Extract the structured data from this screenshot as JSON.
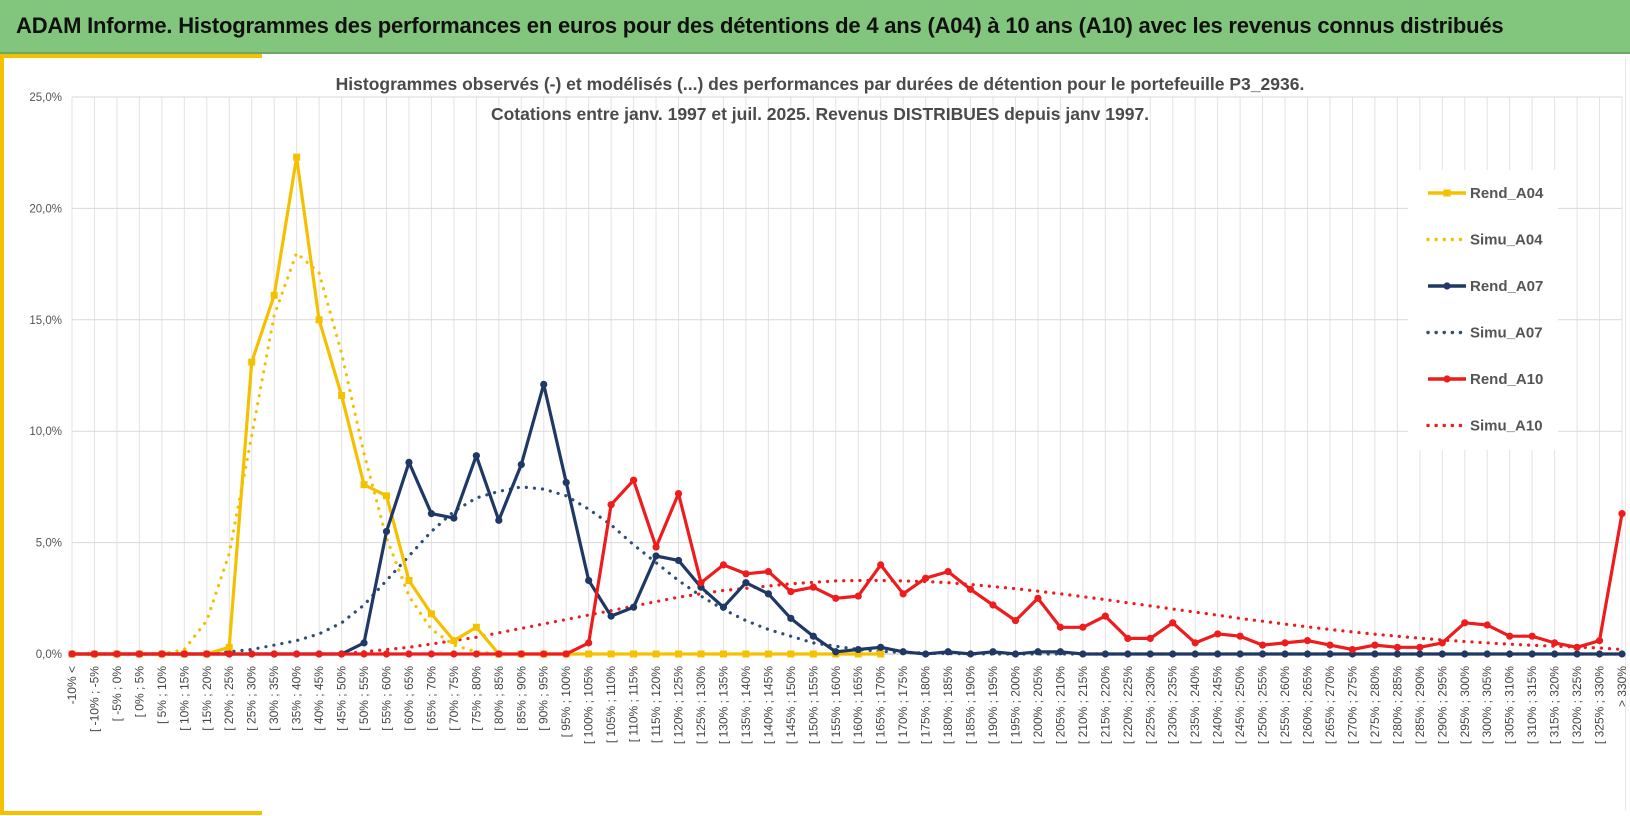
{
  "page": {
    "banner_title": "ADAM Informe. Histogrammes des performances en euros pour des détentions de 4 ans (A04) à 10 ans (A10) avec les revenus connus distribués"
  },
  "colors": {
    "banner_bg": "#82c57c",
    "accent": "#f5c000",
    "A04": "#f5c000",
    "A07": "#1f3864",
    "A07_simu": "#2e4e78",
    "A10": "#ee1c1c"
  },
  "chart_data": {
    "type": "line",
    "title_lines": [
      "Histogrammes observés (-) et modélisés (...) des performances par durées de détention pour le portefeuille P3_2936.",
      "Cotations entre janv. 1997 et juil. 2025. Revenus DISTRIBUES depuis janv 1997."
    ],
    "ylim": [
      0,
      25
    ],
    "yticks": [
      0,
      5,
      10,
      15,
      20,
      25
    ],
    "ytick_labels": [
      "0,0%",
      "5,0%",
      "10,0%",
      "15,0%",
      "20,0%",
      "25,0%"
    ],
    "grid": true,
    "legend_position": "right",
    "categories": [
      "-10% <",
      "[ -10% ; -5%",
      "[ -5% ; 0%",
      "[ 0% ; 5%",
      "[ 5% ; 10%",
      "[ 10% ; 15%",
      "[ 15% ; 20%",
      "[ 20% ; 25%",
      "[ 25% ; 30%",
      "[ 30% ; 35%",
      "[ 35% ; 40%",
      "[ 40% ; 45%",
      "[ 45% ; 50%",
      "[ 50% ; 55%",
      "[ 55% ; 60%",
      "[ 60% ; 65%",
      "[ 65% ; 70%",
      "[ 70% ; 75%",
      "[ 75% ; 80%",
      "[ 80% ; 85%",
      "[ 85% ; 90%",
      "[ 90% ; 95%",
      "[ 95% ; 100%",
      "[ 100% ; 105%",
      "[ 105% ; 110%",
      "[ 110% ; 115%",
      "[ 115% ; 120%",
      "[ 120% ; 125%",
      "[ 125% ; 130%",
      "[ 130% ; 135%",
      "[ 135% ; 140%",
      "[ 140% ; 145%",
      "[ 145% ; 150%",
      "[ 150% ; 155%",
      "[ 155% ; 160%",
      "[ 160% ; 165%",
      "[ 165% ; 170%",
      "[ 170% ; 175%",
      "[ 175% ; 180%",
      "[ 180% ; 185%",
      "[ 185% ; 190%",
      "[ 190% ; 195%",
      "[ 195% ; 200%",
      "[ 200% ; 205%",
      "[ 205% ; 210%",
      "[ 210% ; 215%",
      "[ 215% ; 220%",
      "[ 220% ; 225%",
      "[ 225% ; 230%",
      "[ 230% ; 235%",
      "[ 235% ; 240%",
      "[ 240% ; 245%",
      "[ 245% ; 250%",
      "[ 250% ; 255%",
      "[ 255% ; 260%",
      "[ 260% ; 265%",
      "[ 265% ; 270%",
      "[ 270% ; 275%",
      "[ 275% ; 280%",
      "[ 280% ; 285%",
      "[ 285% ; 290%",
      "[ 290% ; 295%",
      "[ 295% ; 300%",
      "[ 300% ; 305%",
      "[ 305% ; 310%",
      "[ 310% ; 315%",
      "[ 315% ; 320%",
      "[ 320% ; 325%",
      "[ 325% ; 330%",
      "> 330%"
    ],
    "series": [
      {
        "name": "Rend_A04",
        "style": "solid",
        "marker": "square",
        "color": "#f5c000",
        "values": [
          0,
          0,
          0,
          0,
          0,
          0,
          0,
          0.3,
          13.1,
          16.1,
          22.3,
          15.0,
          11.6,
          7.6,
          7.1,
          3.3,
          1.8,
          0.6,
          1.2,
          0,
          0,
          0,
          0,
          0,
          0,
          0,
          0,
          0,
          0,
          0,
          0,
          0,
          0,
          0,
          0,
          0,
          0,
          null,
          null,
          null,
          null,
          null,
          null,
          null,
          null,
          null,
          null,
          null,
          null,
          null,
          null,
          null,
          null,
          null,
          null,
          null,
          null,
          null,
          null,
          null,
          null,
          null,
          null,
          null,
          null,
          null,
          null,
          null,
          null,
          null
        ]
      },
      {
        "name": "Simu_A04",
        "style": "dotted",
        "color": "#f5c000",
        "values": [
          0,
          0,
          0,
          0,
          0,
          0.2,
          1.5,
          4.5,
          9.8,
          15.2,
          18.0,
          17.1,
          13.5,
          9.0,
          5.2,
          2.6,
          1.1,
          0.4,
          0.1,
          0,
          null,
          null,
          null,
          null,
          null,
          null,
          null,
          null,
          null,
          null,
          null,
          null,
          null,
          null,
          null,
          null,
          null,
          null,
          null,
          null,
          null,
          null,
          null,
          null,
          null,
          null,
          null,
          null,
          null,
          null,
          null,
          null,
          null,
          null,
          null,
          null,
          null,
          null,
          null,
          null,
          null,
          null,
          null,
          null,
          null,
          null,
          null,
          null,
          null,
          null
        ]
      },
      {
        "name": "Rend_A07",
        "style": "solid",
        "marker": "circle",
        "color": "#1f3864",
        "values": [
          0,
          0,
          0,
          0,
          0,
          0,
          0,
          0,
          0,
          0,
          0,
          0,
          0,
          0.5,
          5.5,
          8.6,
          6.3,
          6.1,
          8.9,
          6.0,
          8.5,
          12.1,
          7.7,
          3.3,
          1.7,
          2.1,
          4.4,
          4.2,
          3.0,
          2.1,
          3.2,
          2.7,
          1.6,
          0.8,
          0.1,
          0.2,
          0.3,
          0.1,
          0,
          0.1,
          0,
          0.1,
          0,
          0.1,
          0.1,
          0,
          0,
          0,
          0,
          0,
          0,
          0,
          0,
          0,
          0,
          0,
          0,
          0,
          0,
          0,
          0,
          0,
          0,
          0,
          0,
          0,
          0,
          0,
          0,
          0
        ]
      },
      {
        "name": "Simu_A07",
        "style": "dotted",
        "color": "#2e4e78",
        "values": [
          0,
          0,
          0,
          0,
          0,
          0,
          0,
          0.1,
          0.2,
          0.4,
          0.6,
          0.9,
          1.4,
          2.2,
          3.3,
          4.4,
          5.5,
          6.4,
          7.0,
          7.3,
          7.5,
          7.4,
          7.1,
          6.5,
          5.8,
          4.9,
          4.1,
          3.3,
          2.6,
          2.0,
          1.5,
          1.1,
          0.8,
          0.5,
          0.35,
          0.2,
          0.12,
          0.07,
          0.04,
          0.02,
          0.01,
          0,
          0,
          0,
          0,
          0,
          0,
          0,
          0,
          0,
          0,
          0,
          0,
          0,
          0,
          0,
          0,
          0,
          0,
          0,
          0,
          0,
          0,
          0,
          0,
          0,
          0,
          0,
          0,
          0
        ]
      },
      {
        "name": "Rend_A10",
        "style": "solid",
        "marker": "circle",
        "color": "#ee1c1c",
        "values": [
          0,
          0,
          0,
          0,
          0,
          0,
          0,
          0,
          0,
          0,
          0,
          0,
          0,
          0,
          0,
          0,
          0,
          0,
          0,
          0,
          0,
          0,
          0,
          0.5,
          6.7,
          7.8,
          4.8,
          7.2,
          3.2,
          4.0,
          3.6,
          3.7,
          2.8,
          3.0,
          2.5,
          2.6,
          4.0,
          2.7,
          3.4,
          3.7,
          2.9,
          2.2,
          1.5,
          2.5,
          1.2,
          1.2,
          1.7,
          0.7,
          0.7,
          1.4,
          0.5,
          0.9,
          0.8,
          0.4,
          0.5,
          0.6,
          0.4,
          0.2,
          0.4,
          0.3,
          0.3,
          0.5,
          1.4,
          1.3,
          0.8,
          0.8,
          0.5,
          0.3,
          0.6,
          6.3
        ]
      },
      {
        "name": "Simu_A10",
        "style": "dotted",
        "color": "#ee1c1c",
        "values": [
          0,
          0,
          0,
          0,
          0,
          0,
          0,
          0,
          0,
          0,
          0,
          0,
          0,
          0.1,
          0.2,
          0.3,
          0.45,
          0.6,
          0.75,
          0.95,
          1.15,
          1.35,
          1.55,
          1.75,
          1.95,
          2.15,
          2.35,
          2.55,
          2.7,
          2.85,
          2.95,
          3.05,
          3.15,
          3.22,
          3.28,
          3.3,
          3.3,
          3.28,
          3.25,
          3.2,
          3.12,
          3.03,
          2.93,
          2.82,
          2.7,
          2.57,
          2.44,
          2.3,
          2.16,
          2.02,
          1.88,
          1.74,
          1.6,
          1.47,
          1.34,
          1.22,
          1.1,
          0.99,
          0.89,
          0.8,
          0.71,
          0.63,
          0.56,
          0.5,
          0.44,
          0.39,
          0.35,
          0.31,
          0.27,
          0.2
        ]
      }
    ]
  }
}
